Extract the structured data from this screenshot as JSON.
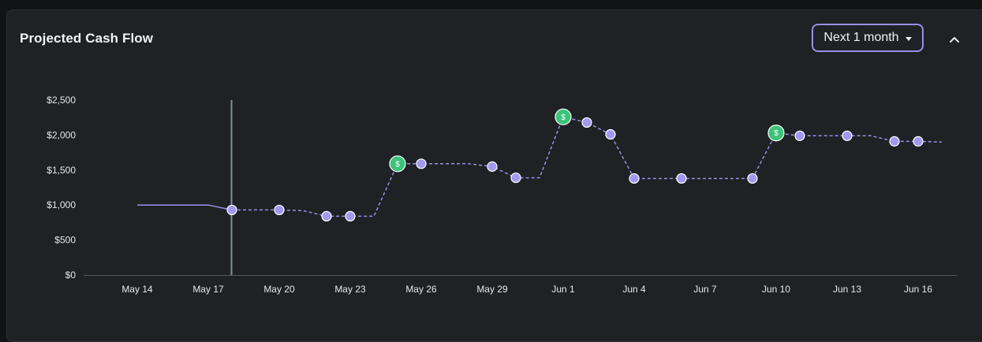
{
  "header": {
    "title": "Projected Cash Flow",
    "range_label": "Next 1 month"
  },
  "colors": {
    "line": "#9b8ee8",
    "point": "#a497f0",
    "income_point": "#3cc37a",
    "marker": "#7f9597",
    "axis": "#55595e",
    "text": "#e6e7ea"
  },
  "icons": {
    "income_marker": "dollar-icon",
    "collapse": "chevron-up-icon"
  },
  "chart_data": {
    "type": "line",
    "title": "",
    "xlabel": "",
    "ylabel": "",
    "x_ticks": [
      "May 14",
      "May 17",
      "May 20",
      "May 23",
      "May 26",
      "May 29",
      "Jun 1",
      "Jun 4",
      "Jun 7",
      "Jun 10",
      "Jun 13",
      "Jun 16"
    ],
    "y_ticks": [
      "$0",
      "$500",
      "$1,000",
      "$1,500",
      "$2,000",
      "$2,500"
    ],
    "ylim": [
      0,
      2500
    ],
    "today": "May 18",
    "series": [
      {
        "style": "solid",
        "points": [
          {
            "x": "May 14",
            "y": 1000
          },
          {
            "x": "May 17",
            "y": 1000
          },
          {
            "x": "May 18",
            "y": 930
          }
        ]
      },
      {
        "style": "dashed",
        "points": [
          {
            "x": "May 18",
            "y": 930
          },
          {
            "x": "May 20",
            "y": 930
          },
          {
            "x": "May 21",
            "y": 920
          },
          {
            "x": "May 22",
            "y": 840
          },
          {
            "x": "May 23",
            "y": 840
          },
          {
            "x": "May 24",
            "y": 840
          },
          {
            "x": "May 25",
            "y": 1590,
            "income": true
          },
          {
            "x": "May 26",
            "y": 1590
          },
          {
            "x": "May 28",
            "y": 1590
          },
          {
            "x": "May 29",
            "y": 1550
          },
          {
            "x": "May 30",
            "y": 1390
          },
          {
            "x": "May 31",
            "y": 1390
          },
          {
            "x": "Jun 1",
            "y": 2260,
            "income": true
          },
          {
            "x": "Jun 2",
            "y": 2180
          },
          {
            "x": "Jun 3",
            "y": 2010
          },
          {
            "x": "Jun 4",
            "y": 1380
          },
          {
            "x": "Jun 6",
            "y": 1380
          },
          {
            "x": "Jun 9",
            "y": 1380
          },
          {
            "x": "Jun 10",
            "y": 2030,
            "income": true
          },
          {
            "x": "Jun 11",
            "y": 1990
          },
          {
            "x": "Jun 13",
            "y": 1990
          },
          {
            "x": "Jun 14",
            "y": 1990
          },
          {
            "x": "Jun 15",
            "y": 1910
          },
          {
            "x": "Jun 16",
            "y": 1910
          },
          {
            "x": "Jun 17",
            "y": 1900
          }
        ]
      }
    ],
    "markers": [
      {
        "x": "May 18",
        "y": 930
      },
      {
        "x": "May 20",
        "y": 930
      },
      {
        "x": "May 22",
        "y": 840
      },
      {
        "x": "May 23",
        "y": 840
      },
      {
        "x": "May 25",
        "y": 1590,
        "income": true
      },
      {
        "x": "May 26",
        "y": 1590
      },
      {
        "x": "May 29",
        "y": 1550
      },
      {
        "x": "May 30",
        "y": 1390
      },
      {
        "x": "Jun 1",
        "y": 2260,
        "income": true
      },
      {
        "x": "Jun 2",
        "y": 2180
      },
      {
        "x": "Jun 3",
        "y": 2010
      },
      {
        "x": "Jun 4",
        "y": 1380
      },
      {
        "x": "Jun 6",
        "y": 1380
      },
      {
        "x": "Jun 9",
        "y": 1380
      },
      {
        "x": "Jun 10",
        "y": 2030,
        "income": true
      },
      {
        "x": "Jun 11",
        "y": 1990
      },
      {
        "x": "Jun 13",
        "y": 1990
      },
      {
        "x": "Jun 15",
        "y": 1910
      },
      {
        "x": "Jun 16",
        "y": 1910
      }
    ],
    "income_symbol": "$"
  }
}
